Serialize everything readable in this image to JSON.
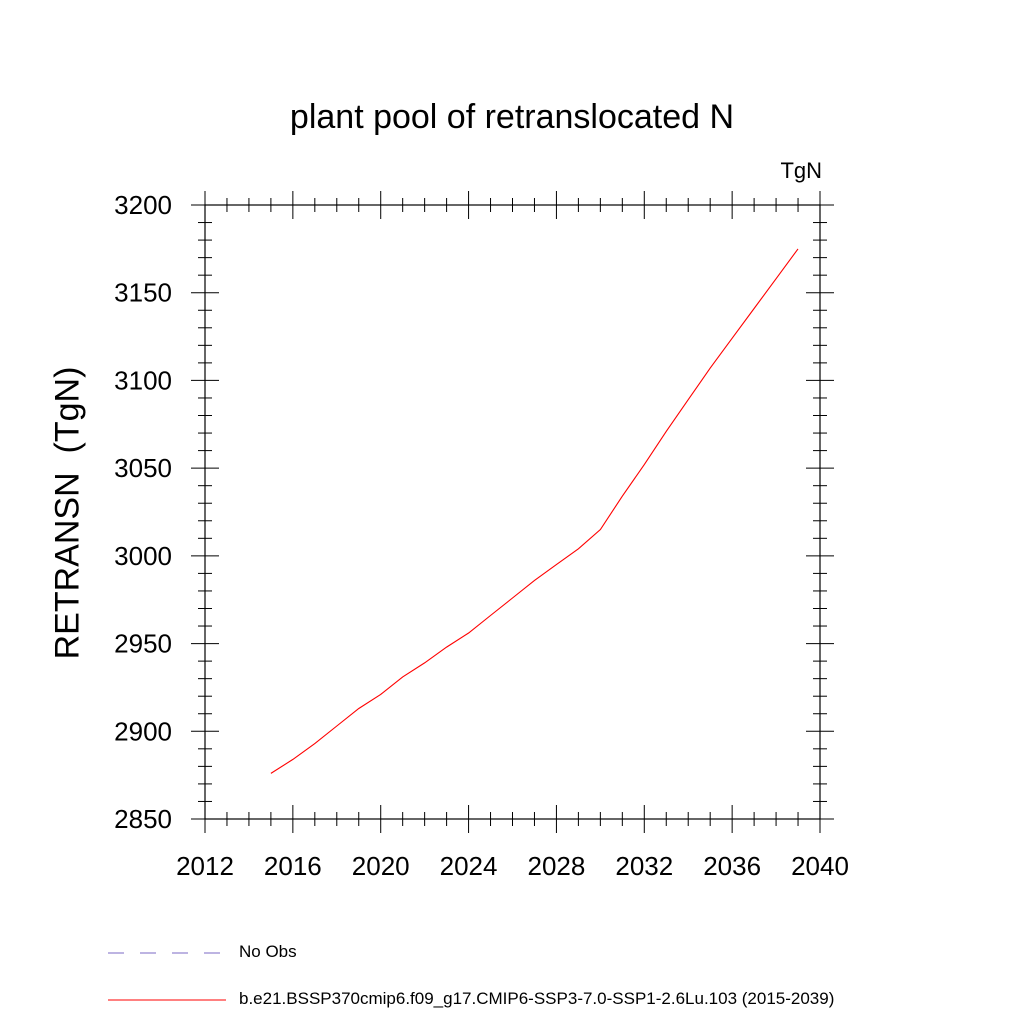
{
  "chart_data": {
    "type": "line",
    "title": "plant pool of retranslocated N",
    "units_label": "TgN",
    "ylabel": "RETRANSN  (TgN)",
    "xlabel": "",
    "xlim": [
      2012,
      2040
    ],
    "ylim": [
      2850,
      3200
    ],
    "x_ticks": [
      2012,
      2016,
      2020,
      2024,
      2028,
      2032,
      2036,
      2040
    ],
    "y_ticks": [
      2850,
      2900,
      2950,
      3000,
      3050,
      3100,
      3150,
      3200
    ],
    "grid": false,
    "legend_position": "bottom",
    "series": [
      {
        "name": "No Obs",
        "color": "#7b68c6",
        "style": "dashed",
        "x": [],
        "y": []
      },
      {
        "name": "b.e21.BSSP370cmip6.f09_g17.CMIP6-SSP3-7.0-SSP1-2.6Lu.103 (2015-2039)",
        "color": "#ff0000",
        "style": "solid",
        "x": [
          2015,
          2016,
          2017,
          2018,
          2019,
          2020,
          2021,
          2022,
          2023,
          2024,
          2025,
          2026,
          2027,
          2028,
          2029,
          2030,
          2031,
          2032,
          2033,
          2034,
          2035,
          2036,
          2037,
          2038,
          2039
        ],
        "y": [
          2876,
          2884,
          2893,
          2903,
          2913,
          2921,
          2931,
          2939,
          2948,
          2956,
          2966,
          2976,
          2986,
          2995,
          3004,
          3015,
          3034,
          3052,
          3071,
          3089,
          3107,
          3124,
          3141,
          3158,
          3175
        ]
      }
    ]
  }
}
